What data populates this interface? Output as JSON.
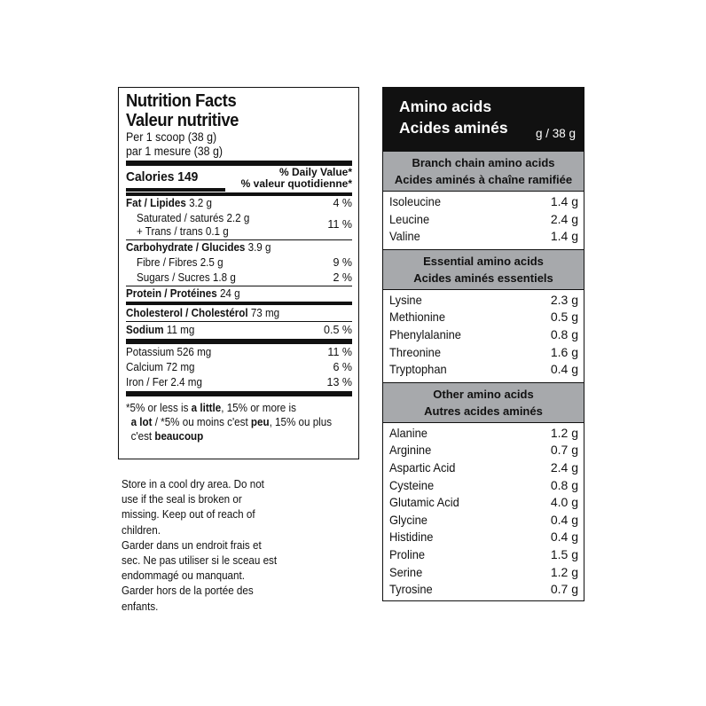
{
  "nutrition": {
    "title_en": "Nutrition Facts",
    "title_fr": "Valeur nutritive",
    "per_en": "Per 1 scoop (38 g)",
    "per_fr": "par 1 mesure (38 g)",
    "calories_label": "Calories",
    "calories_value": "149",
    "dv_en": "% Daily Value*",
    "dv_fr": "% valeur quotidienne*",
    "fat": {
      "label": "Fat / Lipides",
      "amount": "3.2 g",
      "dv": "4 %"
    },
    "saturated": {
      "label": "Saturated / saturés 2.2 g"
    },
    "trans": {
      "label": "+ Trans / trans 0.1 g",
      "dv": "11 %"
    },
    "carb": {
      "label": "Carbohydrate / Glucides",
      "amount": "3.9 g"
    },
    "fibre": {
      "label": "Fibre / Fibres 2.5 g",
      "dv": "9 %"
    },
    "sugars": {
      "label": "Sugars / Sucres 1.8 g",
      "dv": "2 %"
    },
    "protein": {
      "label": "Protein / Protéines",
      "amount": "24 g"
    },
    "cholesterol": {
      "label": "Cholesterol / Cholestérol",
      "amount": "73 mg"
    },
    "sodium": {
      "label": "Sodium",
      "amount": "11 mg",
      "dv": "0.5 %"
    },
    "potassium": {
      "label": "Potassium 526 mg",
      "dv": "11 %"
    },
    "calcium": {
      "label": "Calcium 72 mg",
      "dv": "6 %"
    },
    "iron": {
      "label": "Iron / Fer 2.4 mg",
      "dv": "13 %"
    },
    "footnote": {
      "l1a": "*5% or less is ",
      "l1b": "a little",
      "l1c": ", 15% or more is",
      "l2a": "a lot",
      "l2b": " / *5% ou moins c'est ",
      "l2c": "peu",
      "l2d": ", 15% ou plus",
      "l3a": "c'est ",
      "l3b": "beaucoup"
    }
  },
  "storage": [
    "Store in a cool dry area. Do not",
    "use if the seal is broken or",
    "missing. Keep out of reach of",
    "children.",
    "Garder dans un endroit frais et",
    "sec. Ne pas utiliser si le sceau est",
    "endommagé ou manquant.",
    "Garder hors de la portée des",
    "enfants."
  ],
  "amino": {
    "title_en": "Amino acids",
    "title_fr": "Acides aminés",
    "unit": "g / 38 g",
    "sections": [
      {
        "title_en": "Branch chain amino acids",
        "title_fr": "Acides aminés à chaîne ramifiée",
        "items": [
          {
            "name": "Isoleucine",
            "value": "1.4 g"
          },
          {
            "name": "Leucine",
            "value": "2.4 g"
          },
          {
            "name": "Valine",
            "value": "1.4 g"
          }
        ]
      },
      {
        "title_en": "Essential amino acids",
        "title_fr": "Acides aminés essentiels",
        "items": [
          {
            "name": "Lysine",
            "value": "2.3 g"
          },
          {
            "name": "Methionine",
            "value": "0.5 g"
          },
          {
            "name": "Phenylalanine",
            "value": "0.8 g"
          },
          {
            "name": "Threonine",
            "value": "1.6 g"
          },
          {
            "name": "Tryptophan",
            "value": "0.4 g"
          }
        ]
      },
      {
        "title_en": "Other amino acids",
        "title_fr": "Autres acides aminés",
        "items": [
          {
            "name": "Alanine",
            "value": "1.2 g"
          },
          {
            "name": "Arginine",
            "value": "0.7 g"
          },
          {
            "name": "Aspartic Acid",
            "value": "2.4 g"
          },
          {
            "name": "Cysteine",
            "value": "0.8 g"
          },
          {
            "name": "Glutamic Acid",
            "value": "4.0 g"
          },
          {
            "name": "Glycine",
            "value": "0.4 g"
          },
          {
            "name": "Histidine",
            "value": "0.4 g"
          },
          {
            "name": "Proline",
            "value": "1.5 g"
          },
          {
            "name": "Serine",
            "value": "1.2 g"
          },
          {
            "name": "Tyrosine",
            "value": "0.7 g"
          }
        ]
      }
    ]
  }
}
